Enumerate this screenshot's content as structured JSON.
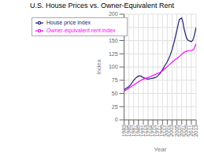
{
  "chart_data": {
    "type": "line",
    "title": "U.S. House Prices vs. Owner-Equivalent Rent",
    "xlabel": "Year",
    "ylabel": "Index",
    "xlim": [
      1983,
      2013
    ],
    "ylim": [
      0,
      200
    ],
    "xticks": [
      1983,
      1985,
      1987,
      1989,
      1991,
      1993,
      1995,
      1997,
      1999,
      2001,
      2003,
      2005,
      2007,
      2009,
      2011,
      2013
    ],
    "yticks": [
      0,
      25,
      50,
      75,
      100,
      125,
      150,
      175,
      200
    ],
    "grid": true,
    "legend": "upper left",
    "series": [
      {
        "name": "House price index",
        "color": "#1f1f6e",
        "x": [
          1983,
          1984,
          1985,
          1986,
          1987,
          1988,
          1989,
          1990,
          1991,
          1992,
          1993,
          1994,
          1995,
          1996,
          1997,
          1998,
          1999,
          2000,
          2001,
          2002,
          2003,
          2004,
          2005,
          2006,
          2007,
          2007.5,
          2008,
          2008.5,
          2009,
          2009.5,
          2010,
          2010.5,
          2011,
          2011.5,
          2012,
          2012.5,
          2013
        ],
        "values": [
          57,
          60,
          63,
          68,
          75,
          80,
          83,
          83,
          80,
          78,
          77,
          78,
          79,
          80,
          83,
          88,
          95,
          103,
          110,
          120,
          133,
          150,
          170,
          190,
          193,
          185,
          172,
          163,
          155,
          151,
          150,
          149,
          148,
          150,
          155,
          165,
          175
        ]
      },
      {
        "name": "Owner-equivalent rent index",
        "color": "#ff00ff",
        "x": [
          1983,
          1984,
          1985,
          1986,
          1987,
          1988,
          1989,
          1990,
          1991,
          1992,
          1993,
          1994,
          1995,
          1996,
          1997,
          1998,
          1999,
          2000,
          2001,
          2002,
          2003,
          2004,
          2005,
          2006,
          2007,
          2008,
          2009,
          2010,
          2011,
          2012,
          2013
        ],
        "values": [
          54,
          57,
          60,
          63,
          66,
          69,
          72,
          75,
          77,
          79,
          80,
          82,
          84,
          86,
          88,
          90,
          93,
          97,
          101,
          105,
          109,
          113,
          116,
          120,
          124,
          128,
          130,
          131,
          131,
          133,
          144
        ]
      }
    ]
  }
}
